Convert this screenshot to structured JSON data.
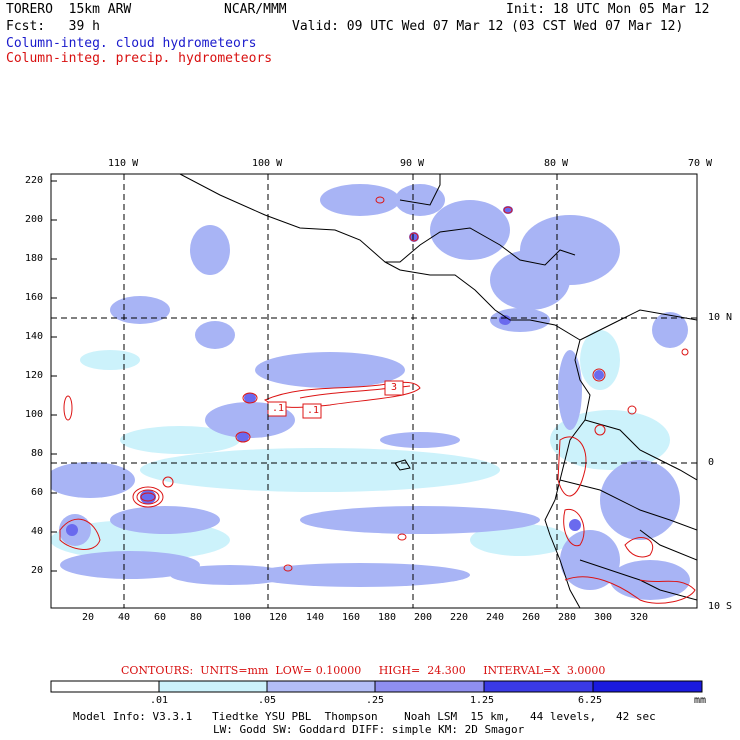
{
  "header": {
    "model": "TORERO  15km ARW",
    "org": "NCAR/MMM",
    "init": "Init: 18 UTC Mon 05 Mar 12",
    "fcst": "Fcst:   39 h",
    "valid": "Valid: 09 UTC Wed 07 Mar 12 (03 CST Wed 07 Mar 12)",
    "legend_cloud": "Column-integ. cloud hydrometeors",
    "legend_precip": "Column-integ. precip. hydrometeors"
  },
  "axes": {
    "top_lon": [
      "110 W",
      "100 W",
      "90 W",
      "80 W",
      "70 W"
    ],
    "right_lat": [
      "10 N",
      "0",
      "10 S"
    ],
    "left_y": [
      "220",
      "200",
      "180",
      "160",
      "140",
      "120",
      "100",
      "80",
      "60",
      "40",
      "20"
    ],
    "bottom_x": [
      "20",
      "40",
      "60",
      "80",
      "100",
      "120",
      "140",
      "160",
      "180",
      "200",
      "220",
      "240",
      "260",
      "280",
      "300",
      "320"
    ]
  },
  "contour_labels": [
    ".1",
    ".1",
    "3"
  ],
  "contours_info": {
    "title": "CONTOURS:  UNITS=mm  LOW= 0.10000     HIGH=  24.300     INTERVAL=X  3.0000"
  },
  "colorbar": {
    "levels": [
      ".01",
      ".05",
      ".25",
      "1.25",
      "6.25"
    ],
    "unit": "mm",
    "colors": [
      "#ffffff",
      "#ccf2fb",
      "#b3bef7",
      "#8f8ff0",
      "#6666ee",
      "#3a3ae6",
      "#1a1adf"
    ]
  },
  "footer": {
    "line1": "Model Info: V3.3.1   Tiedtke YSU PBL  Thompson    Noah LSM  15 km,   44 levels,   42 sec",
    "line2": "LW: Godd SW: Goddard DIFF: simple KM: 2D Smagor"
  }
}
